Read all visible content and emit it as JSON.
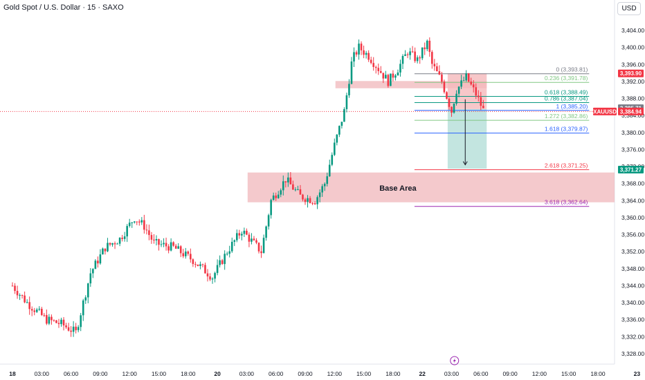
{
  "header": {
    "title": "Gold Spot / U.S. Dollar · 15 · SAXO",
    "currency": "USD"
  },
  "colors": {
    "up": "#089981",
    "down": "#f23645",
    "base_zone": "#f0b7bb",
    "stop_zone": "#f5b9bc",
    "target_zone": "#b8e1da",
    "fib_level": "#2962ff",
    "fib_ext": "#089981"
  },
  "chart_data": {
    "type": "candlestick",
    "y_axis": {
      "ylim": [
        3326.5,
        3406.5
      ],
      "ticks": [
        3404,
        3400,
        3396,
        3392,
        3388,
        3384,
        3380,
        3376,
        3372,
        3368,
        3364,
        3360,
        3356,
        3352,
        3348,
        3344,
        3340,
        3336,
        3332,
        3328
      ],
      "tick_labels": [
        "3,404.00",
        "3,400.00",
        "3,396.00",
        "3,392.00",
        "3,388.00",
        "3,384.00",
        "3,380.00",
        "3,376.00",
        "3,372.00",
        "3,368.00",
        "3,364.00",
        "3,360.00",
        "3,356.00",
        "3,352.00",
        "3,348.00",
        "3,344.00",
        "3,340.00",
        "3,336.00",
        "3,332.00",
        "3,328.00"
      ]
    },
    "x_axis": {
      "ticks": [
        {
          "label": "18",
          "bold": true,
          "t": 0
        },
        {
          "label": "03:00",
          "t": 3
        },
        {
          "label": "06:00",
          "t": 6
        },
        {
          "label": "09:00",
          "t": 9
        },
        {
          "label": "12:00",
          "t": 12
        },
        {
          "label": "15:00",
          "t": 15
        },
        {
          "label": "18:00",
          "t": 18
        },
        {
          "label": "20",
          "bold": true,
          "t": 21
        },
        {
          "label": "03:00",
          "t": 24
        },
        {
          "label": "06:00",
          "t": 27
        },
        {
          "label": "09:00",
          "t": 30
        },
        {
          "label": "12:00",
          "t": 33
        },
        {
          "label": "15:00",
          "t": 36
        },
        {
          "label": "18:00",
          "t": 39
        },
        {
          "label": "22",
          "bold": true,
          "t": 42
        },
        {
          "label": "03:00",
          "t": 45
        },
        {
          "label": "06:00",
          "t": 48
        },
        {
          "label": "09:00",
          "t": 51
        },
        {
          "label": "12:00",
          "t": 54
        },
        {
          "label": "15:00",
          "t": 57
        },
        {
          "label": "18:00",
          "t": 60
        },
        {
          "label": "23",
          "bold": true,
          "t": 64
        }
      ]
    },
    "key_points": [
      {
        "t": 0,
        "p": 3344
      },
      {
        "t": 1.5,
        "p": 3340
      },
      {
        "t": 3.5,
        "p": 3336
      },
      {
        "t": 5,
        "p": 3335
      },
      {
        "t": 6.5,
        "p": 3333
      },
      {
        "t": 8,
        "p": 3347
      },
      {
        "t": 9.5,
        "p": 3353
      },
      {
        "t": 11,
        "p": 3355
      },
      {
        "t": 12.5,
        "p": 3360
      },
      {
        "t": 13.5,
        "p": 3358
      },
      {
        "t": 14.5,
        "p": 3354
      },
      {
        "t": 16.5,
        "p": 3353
      },
      {
        "t": 18.5,
        "p": 3350
      },
      {
        "t": 20.5,
        "p": 3346
      },
      {
        "t": 22,
        "p": 3352
      },
      {
        "t": 23.5,
        "p": 3357
      },
      {
        "t": 25.5,
        "p": 3352
      },
      {
        "t": 26.5,
        "p": 3364
      },
      {
        "t": 28,
        "p": 3369
      },
      {
        "t": 29.5,
        "p": 3365
      },
      {
        "t": 31,
        "p": 3364
      },
      {
        "t": 32,
        "p": 3368
      },
      {
        "t": 33,
        "p": 3377
      },
      {
        "t": 34,
        "p": 3385
      },
      {
        "t": 34.8,
        "p": 3397
      },
      {
        "t": 35.5,
        "p": 3400
      },
      {
        "t": 36.5,
        "p": 3398
      },
      {
        "t": 37.5,
        "p": 3395
      },
      {
        "t": 38.5,
        "p": 3392
      },
      {
        "t": 39.5,
        "p": 3395
      },
      {
        "t": 40.5,
        "p": 3399
      },
      {
        "t": 41.5,
        "p": 3397
      },
      {
        "t": 42.5,
        "p": 3401
      },
      {
        "t": 43,
        "p": 3396
      },
      {
        "t": 44,
        "p": 3392
      },
      {
        "t": 45,
        "p": 3385
      },
      {
        "t": 45.5,
        "p": 3390
      },
      {
        "t": 46.5,
        "p": 3393
      },
      {
        "t": 47.5,
        "p": 3389
      },
      {
        "t": 48.3,
        "p": 3385
      }
    ],
    "fib_levels": [
      {
        "label": "0 (3,393.81)",
        "value": 3393.81,
        "color": "#787b86"
      },
      {
        "label": "0.236 (3,391.78)",
        "value": 3391.78,
        "color": "#81c784"
      },
      {
        "label": "0.618 (3,388.49)",
        "value": 3388.49,
        "color": "#089981"
      },
      {
        "label": "0.786 (3,387.04)",
        "value": 3387.04,
        "color": "#089981"
      },
      {
        "label": "1 (3,385.20)",
        "value": 3385.2,
        "color": "#2962ff"
      },
      {
        "label": "1.272 (3,382.86)",
        "value": 3382.86,
        "color": "#81c784"
      },
      {
        "label": "1.618 (3,379.87)",
        "value": 3379.87,
        "color": "#2962ff"
      },
      {
        "label": "2.618 (3,371.25)",
        "value": 3371.25,
        "color": "#f23645"
      },
      {
        "label": "3.618 (3,362.64)",
        "value": 3362.64,
        "color": "#9c27b0"
      }
    ],
    "price_labels": [
      {
        "text": "3,393.90",
        "value": 3393.9,
        "color": "#f23645"
      },
      {
        "text": "3,385.71",
        "value": 3385.71,
        "color": "#787b86"
      },
      {
        "text": "XAUUSD",
        "value": 3384.94,
        "color": "#f23645"
      },
      {
        "text": "3,384.94",
        "value": 3384.94,
        "color": "#f23645"
      },
      {
        "text": "3,371.27",
        "value": 3371.27,
        "color": "#089981"
      }
    ],
    "current_price": 3384.94,
    "annotations": {
      "base_area_label": "Base Area",
      "base_area_range": [
        3363.6,
        3370.6
      ],
      "resistance_band": [
        3390.4,
        3392.1
      ],
      "stop_zone": [
        3385.5,
        3393.9
      ],
      "target_zone": [
        3371.5,
        3385.5
      ]
    }
  }
}
